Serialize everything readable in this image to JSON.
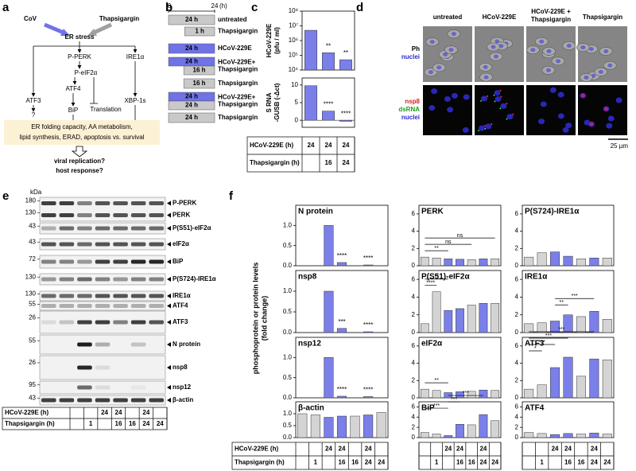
{
  "panel_labels": [
    "a",
    "b",
    "c",
    "d",
    "e",
    "f"
  ],
  "a": {
    "cov": "CoV",
    "thapsigargin": "Thapsigargin",
    "er_stress": "ER stress",
    "p_perk": "P-PERK",
    "ire1": "IRE1α",
    "p_eif2": "P-eIF2α",
    "atf3": "ATF3",
    "atf4": "ATF4",
    "xbp": "XBP-1s",
    "question": "?",
    "translation": "Translation",
    "bip": "BiP",
    "box": [
      "ER folding capacity, AA metabolism,",
      "lipid synthesis, ERAD, apoptosis vs. survival"
    ],
    "outcome": [
      "viral replication?",
      "host response?"
    ]
  },
  "b": {
    "axis_start": "0",
    "axis_end": "24",
    "axis_unit": "(h)",
    "rows": [
      {
        "bars": [
          "24 h"
        ],
        "label": [
          "untreated"
        ]
      },
      {
        "bars": [
          "1 h"
        ],
        "label": [
          "Thapsigargin"
        ]
      },
      {
        "bars": [
          "24 h"
        ],
        "label": [
          "HCoV-229E"
        ]
      },
      {
        "bars": [
          "24 h",
          "16 h"
        ],
        "label": [
          "HCoV-229E+",
          "Thapsigargin"
        ]
      },
      {
        "bars": [
          "16 h"
        ],
        "label": [
          "Thapsigargin"
        ]
      },
      {
        "bars": [
          "24 h",
          "24 h"
        ],
        "label": [
          "HCoV-229E+",
          "Thapsigargin"
        ]
      },
      {
        "bars": [
          "24 h"
        ],
        "label": [
          "Thapsigargin"
        ]
      }
    ]
  },
  "c": {
    "top": {
      "type": "bar",
      "ylabel": [
        "HCoV-229E",
        "(pfu / ml)"
      ],
      "log": true,
      "ylim": [
        10000,
        100000000
      ],
      "yticks": [
        {
          "value": 10000,
          "label": "10⁴"
        },
        {
          "value": 100000,
          "label": "10⁵"
        },
        {
          "value": 1000000,
          "label": "10⁶"
        },
        {
          "value": 10000000,
          "label": "10⁷"
        },
        {
          "value": 100000000,
          "label": "10⁸"
        }
      ],
      "values": [
        5000000,
        150000,
        50000
      ],
      "sig": [
        "**",
        "**"
      ],
      "color": "#7b7fe8"
    },
    "bottom": {
      "type": "bar",
      "ylabel": [
        "S RNA",
        "-GUSB (-Δct)"
      ],
      "ylim": [
        -2,
        12
      ],
      "yticks": [
        0,
        5,
        10
      ],
      "values": [
        9.8,
        2.6,
        -0.3
      ],
      "sig": [
        "****",
        "****"
      ],
      "color": "#7b7fe8"
    },
    "table": {
      "rows": [
        {
          "label": "HCoV-229E (h)",
          "cells": [
            24,
            24,
            24
          ]
        },
        {
          "label": "Thapsigargin (h)",
          "cells": [
            null,
            16,
            24
          ]
        }
      ]
    }
  },
  "d": {
    "columns": [
      [
        "untreated"
      ],
      [
        "HCoV-229E"
      ],
      [
        "HCoV-229E +",
        "Thapsigargin"
      ],
      [
        "Thapsigargin"
      ]
    ],
    "row1": [
      "Ph",
      "nuclei"
    ],
    "row2": [
      "nsp8",
      "dsRNA",
      "nuclei"
    ],
    "scale": "25 µm"
  },
  "e": {
    "kda": "kDa",
    "blots": [
      {
        "markers": [
          180,
          130
        ],
        "labels": [
          "P-PERK",
          "PERK"
        ]
      },
      {
        "markers": [
          43
        ],
        "labels": [
          "P(S51)-eIF2α"
        ]
      },
      {
        "markers": [
          43
        ],
        "labels": [
          "eIF2α"
        ]
      },
      {
        "markers": [
          72
        ],
        "labels": [
          "BiP"
        ]
      },
      {
        "markers": [
          130
        ],
        "labels": [
          "P(S724)-IRE1α"
        ]
      },
      {
        "markers": [
          130
        ],
        "labels": [
          "IRE1α"
        ]
      },
      {
        "markers": [
          55
        ],
        "labels": [
          "ATF4"
        ]
      },
      {
        "markers": [
          26
        ],
        "labels": [
          "ATF3"
        ]
      },
      {
        "markers": [
          55
        ],
        "labels": [
          "N protein"
        ]
      },
      {
        "markers": [
          26
        ],
        "labels": [
          "nsp8"
        ]
      },
      {
        "markers": [
          95
        ],
        "labels": [
          "nsp12"
        ]
      },
      {
        "markers": [
          43
        ],
        "labels": [
          "β-actin"
        ]
      }
    ],
    "table": {
      "rows": [
        {
          "label": "HCoV-229E (h)",
          "cells": [
            null,
            null,
            24,
            24,
            null,
            24,
            null
          ]
        },
        {
          "label": "Thapsigargin (h)",
          "cells": [
            null,
            1,
            null,
            16,
            16,
            24,
            24
          ]
        }
      ]
    }
  },
  "f": {
    "ylabel": [
      "phosphoprotein or protein levels",
      "(fold change)"
    ],
    "lane_colors": [
      "#d4d4d4",
      "#d4d4d4",
      "#7b7fe8",
      "#7b7fe8",
      "#d4d4d4",
      "#7b7fe8",
      "#d4d4d4"
    ],
    "columns": [
      {
        "ylim": [
          0,
          1.5
        ],
        "yticks": [
          {
            "value": 0,
            "label": "0.0"
          },
          0.5,
          {
            "value": 1,
            "label": "1.0"
          }
        ],
        "charts": [
          {
            "title": "N protein",
            "values": [
              0,
              0,
              1,
              0.08,
              0,
              0.02,
              0
            ],
            "sig": [
              "****",
              "****"
            ]
          },
          {
            "title": "nsp8",
            "values": [
              0,
              0,
              1,
              0.1,
              0,
              0.02,
              0
            ],
            "sig": [
              "***",
              "****"
            ]
          },
          {
            "title": "nsp12",
            "values": [
              0,
              0,
              1,
              0.04,
              0,
              0.03,
              0
            ],
            "sig": [
              "****",
              "****"
            ]
          },
          {
            "title": "β-actin",
            "values": [
              1,
              0.95,
              0.85,
              0.9,
              0.9,
              0.95,
              1.05
            ]
          }
        ]
      },
      {
        "ylim": [
          0,
          7
        ],
        "yticks": [
          0,
          2,
          4,
          6
        ],
        "charts": [
          {
            "title": "PERK",
            "values": [
              1,
              0.9,
              0.8,
              0.75,
              0.7,
              0.8,
              0.8
            ],
            "sig": [
              "**",
              "ns",
              "ns"
            ]
          },
          {
            "title": "P(S51)-eIF2α",
            "values": [
              1,
              4.6,
              2.5,
              2.7,
              3.1,
              3.3,
              3.3
            ],
            "sig": [
              "****",
              "**"
            ]
          },
          {
            "title": "eIF2α",
            "values": [
              1,
              0.85,
              0.6,
              0.7,
              0.75,
              0.9,
              0.85
            ],
            "sig": [
              "**"
            ]
          },
          {
            "title": "BiP",
            "values": [
              1,
              0.7,
              0.4,
              2.6,
              2.5,
              4.5,
              3.3
            ],
            "sig": [
              "***",
              "***",
              "***"
            ]
          }
        ]
      },
      {
        "ylim": [
          0,
          7
        ],
        "yticks": [
          0,
          2,
          4,
          6
        ],
        "charts": [
          {
            "title": "P(S724)-IRE1α",
            "values": [
              1,
              1.5,
              1.6,
              1.1,
              0.8,
              0.9,
              0.9
            ]
          },
          {
            "title": "IRE1α",
            "values": [
              1,
              1.1,
              1.3,
              2,
              1.8,
              2.4,
              1.5
            ],
            "sig": [
              "**",
              "***"
            ]
          },
          {
            "title": "ATF3",
            "values": [
              1,
              1.5,
              3.5,
              4.7,
              2.5,
              4.5,
              4.4
            ],
            "sig": [
              "*",
              "***",
              "***",
              "***"
            ]
          },
          {
            "title": "ATF4",
            "values": [
              1,
              0.8,
              0.6,
              0.8,
              0.7,
              0.9,
              0.7
            ]
          }
        ]
      }
    ],
    "table": {
      "rows": [
        {
          "label": "HCoV-229E (h)",
          "cells": [
            null,
            null,
            24,
            24,
            null,
            24,
            null
          ]
        },
        {
          "label": "Thapsigargin (h)",
          "cells": [
            null,
            1,
            null,
            16,
            16,
            24,
            24
          ]
        }
      ]
    }
  }
}
